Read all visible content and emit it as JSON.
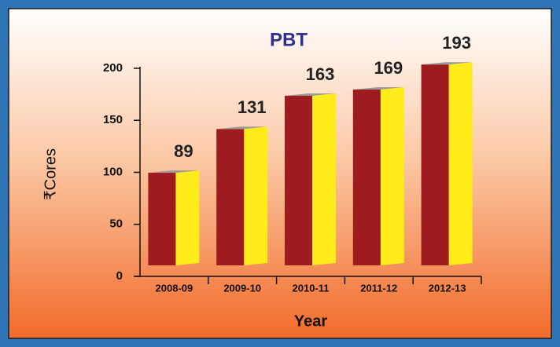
{
  "chart_data": {
    "type": "bar",
    "title": "PBT",
    "x_label": "Year",
    "y_label": "₹Cores",
    "categories": [
      "2008-09",
      "2009-10",
      "2010-11",
      "2011-12",
      "2012-13"
    ],
    "values": [
      89,
      131,
      163,
      169,
      193
    ],
    "color": "#9e1b20",
    "side_color": "#ffec1a",
    "ylim": [
      0,
      200
    ],
    "yticks": [
      0,
      50,
      100,
      150,
      200
    ]
  }
}
